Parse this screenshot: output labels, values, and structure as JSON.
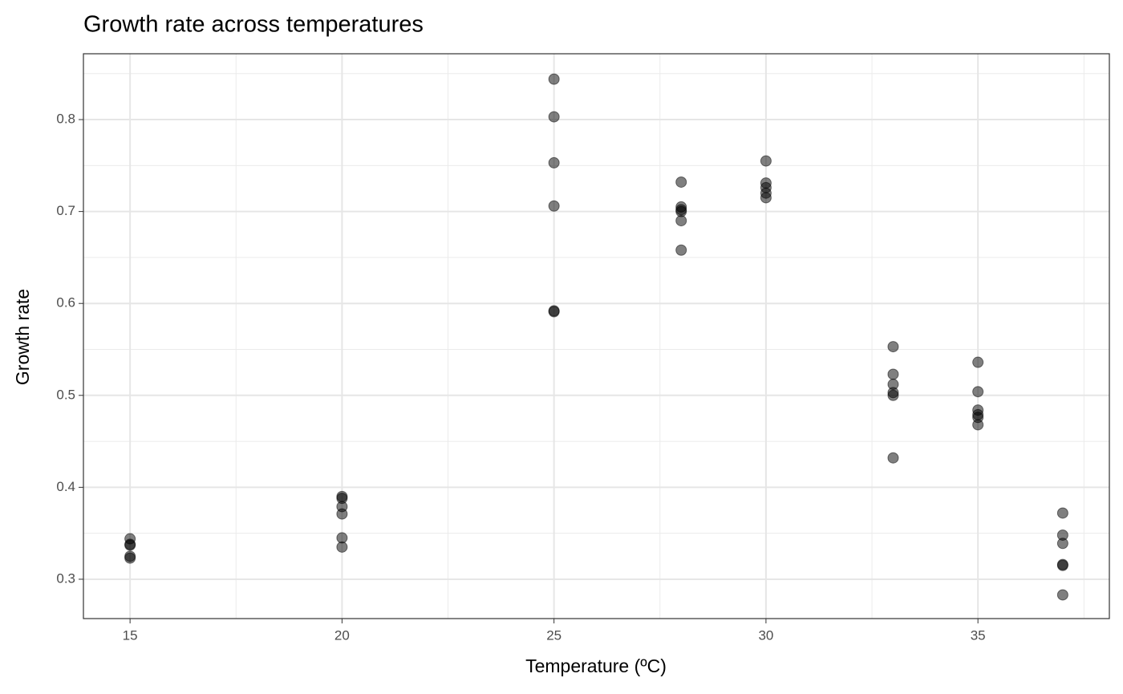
{
  "chart_data": {
    "type": "scatter",
    "title": "Growth rate across temperatures",
    "xlabel": "Temperature (ºC)",
    "ylabel": "Growth rate",
    "series": [
      {
        "color": "#000000",
        "alpha": 0.5,
        "x": [
          15,
          15,
          15,
          15,
          15,
          20,
          20,
          20,
          20,
          20,
          20,
          25,
          25,
          25,
          25,
          25,
          25,
          28,
          28,
          28,
          28,
          28,
          28,
          30,
          30,
          30,
          30,
          30,
          33,
          33,
          33,
          33,
          33,
          33,
          35,
          35,
          35,
          35,
          35,
          35,
          37,
          37,
          37,
          37,
          37,
          37
        ],
        "values": [
          0.344,
          0.338,
          0.337,
          0.325,
          0.323,
          0.39,
          0.388,
          0.379,
          0.371,
          0.345,
          0.335,
          0.844,
          0.803,
          0.753,
          0.706,
          0.592,
          0.591,
          0.732,
          0.705,
          0.702,
          0.7,
          0.69,
          0.658,
          0.755,
          0.731,
          0.726,
          0.72,
          0.715,
          0.553,
          0.523,
          0.512,
          0.503,
          0.5,
          0.432,
          0.536,
          0.504,
          0.484,
          0.479,
          0.476,
          0.468,
          0.372,
          0.348,
          0.339,
          0.316,
          0.315,
          0.283
        ]
      }
    ],
    "xlim": [
      13.9,
      38.1
    ],
    "xticks": [
      15,
      20,
      25,
      30,
      35
    ],
    "xminor": [
      17.5,
      22.5,
      27.5,
      32.5,
      37.5
    ],
    "ylim": [
      0.2572,
      0.8716
    ],
    "yticks": [
      0.3,
      0.4,
      0.5,
      0.6,
      0.7,
      0.8
    ],
    "yminor": [
      0.35,
      0.45,
      0.55,
      0.65,
      0.75,
      0.85
    ],
    "grid": true
  }
}
